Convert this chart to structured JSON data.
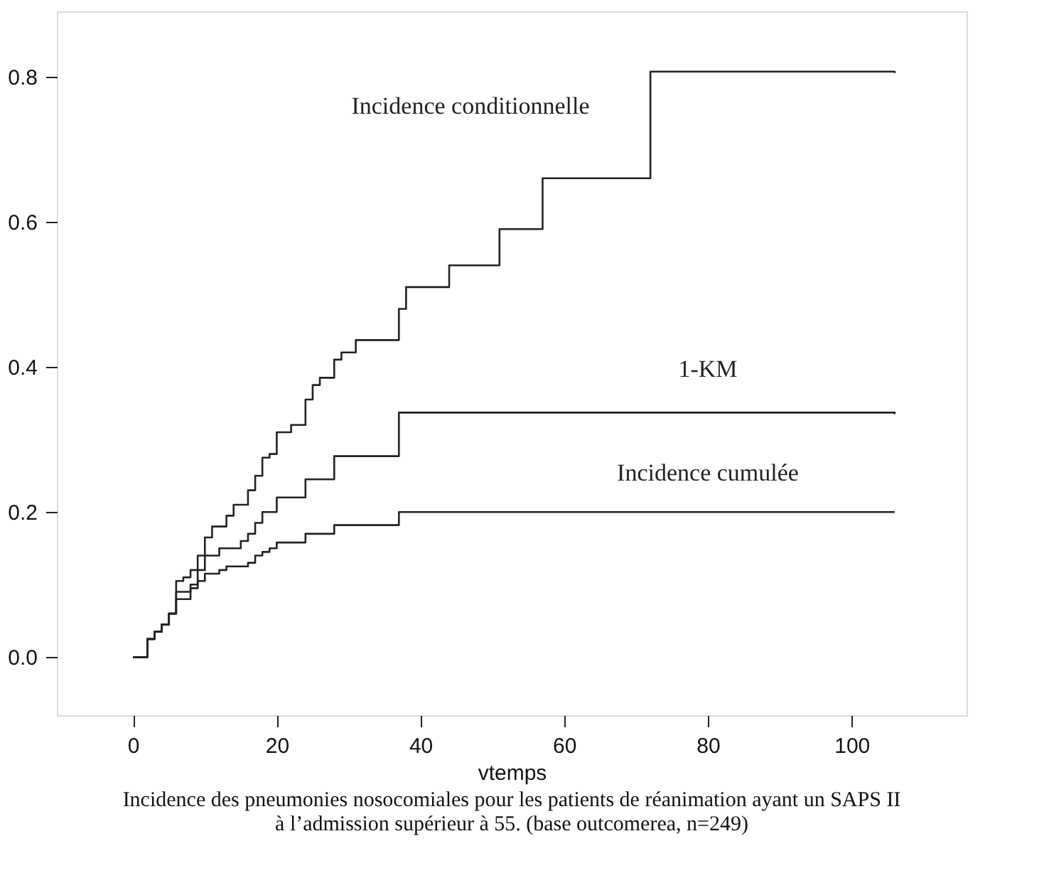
{
  "chart_data": {
    "type": "step",
    "xlabel": "vtemps",
    "xlim": [
      -10.6,
      116
    ],
    "ylim": [
      -0.08,
      0.89
    ],
    "xticks": [
      0,
      20,
      40,
      60,
      80,
      100
    ],
    "yticks": [
      {
        "value": 0,
        "label": "0.0"
      },
      {
        "value": 0.2,
        "label": "0.2"
      },
      {
        "value": 0.4,
        "label": "0.4"
      },
      {
        "value": 0.6,
        "label": "0.6"
      },
      {
        "value": 0.8,
        "label": "0.8"
      }
    ],
    "grid": false,
    "legend": false,
    "line_style": "solid",
    "marker": "none",
    "series": [
      {
        "name": "Incidence conditionnelle",
        "color": "#222222",
        "x": [
          0,
          2,
          3,
          4,
          5,
          6,
          7,
          8,
          9,
          10,
          11,
          13,
          14,
          16,
          17,
          18,
          19,
          20,
          22,
          24,
          25,
          26,
          28,
          29,
          31,
          37,
          38,
          44,
          51,
          57,
          72,
          106
        ],
        "values": [
          0,
          0.025,
          0.035,
          0.045,
          0.06,
          0.105,
          0.11,
          0.12,
          0.14,
          0.165,
          0.18,
          0.195,
          0.21,
          0.23,
          0.25,
          0.275,
          0.28,
          0.31,
          0.32,
          0.355,
          0.375,
          0.385,
          0.41,
          0.42,
          0.437,
          0.48,
          0.51,
          0.54,
          0.59,
          0.66,
          0.807,
          0.805
        ]
      },
      {
        "name": "1-KM",
        "color": "#222222",
        "x": [
          0,
          2,
          3,
          4,
          5,
          6,
          8,
          9,
          10,
          12,
          15,
          16,
          17,
          18,
          20,
          24,
          28,
          37,
          106
        ],
        "values": [
          0,
          0.025,
          0.035,
          0.045,
          0.06,
          0.09,
          0.1,
          0.12,
          0.14,
          0.15,
          0.16,
          0.17,
          0.185,
          0.2,
          0.22,
          0.245,
          0.277,
          0.337,
          0.335
        ]
      },
      {
        "name": "Incidence cumulée",
        "color": "#222222",
        "x": [
          0,
          2,
          3,
          4,
          5,
          6,
          8,
          9,
          10,
          12,
          13,
          16,
          17,
          18,
          19,
          20,
          24,
          28,
          37,
          106
        ],
        "values": [
          0,
          0.025,
          0.035,
          0.045,
          0.06,
          0.08,
          0.095,
          0.105,
          0.115,
          0.12,
          0.125,
          0.13,
          0.14,
          0.145,
          0.15,
          0.158,
          0.17,
          0.182,
          0.2,
          0.2
        ]
      }
    ],
    "annotations": [
      "Incidence des pneumonies nosocomiales pour les patients de réanimation ayant un SAPS II à l’admission supérieur à 55. (base outcomerea, n=249)"
    ]
  }
}
